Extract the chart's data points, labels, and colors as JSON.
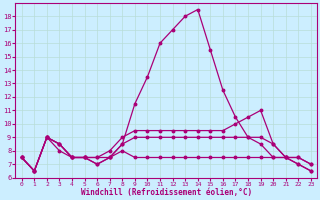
{
  "xlabel": "Windchill (Refroidissement éolien,°C)",
  "background_color": "#cceeff",
  "grid_color": "#b8ddd8",
  "line_color": "#aa0077",
  "x_values": [
    0,
    1,
    2,
    3,
    4,
    5,
    6,
    7,
    8,
    9,
    10,
    11,
    12,
    13,
    14,
    15,
    16,
    17,
    18,
    19,
    20,
    21,
    22,
    23
  ],
  "series1": [
    7.5,
    6.5,
    9.0,
    8.0,
    7.5,
    7.5,
    7.0,
    7.5,
    8.5,
    11.5,
    13.5,
    16.0,
    17.0,
    18.0,
    18.5,
    15.5,
    12.5,
    10.5,
    9.0,
    8.5,
    7.5,
    7.5,
    7.0,
    6.5
  ],
  "series2": [
    7.5,
    6.5,
    9.0,
    8.5,
    7.5,
    7.5,
    7.5,
    8.0,
    9.0,
    9.5,
    9.5,
    9.5,
    9.5,
    9.5,
    9.5,
    9.5,
    9.5,
    10.0,
    10.5,
    11.0,
    8.5,
    7.5,
    7.5,
    7.0
  ],
  "series3": [
    7.5,
    6.5,
    9.0,
    8.5,
    7.5,
    7.5,
    7.5,
    7.5,
    8.5,
    9.0,
    9.0,
    9.0,
    9.0,
    9.0,
    9.0,
    9.0,
    9.0,
    9.0,
    9.0,
    9.0,
    8.5,
    7.5,
    7.5,
    7.0
  ],
  "series4": [
    7.5,
    6.5,
    9.0,
    8.5,
    7.5,
    7.5,
    7.0,
    7.5,
    8.0,
    7.5,
    7.5,
    7.5,
    7.5,
    7.5,
    7.5,
    7.5,
    7.5,
    7.5,
    7.5,
    7.5,
    7.5,
    7.5,
    7.0,
    6.5
  ],
  "ylim": [
    6,
    19
  ],
  "xlim": [
    -0.5,
    23.5
  ],
  "yticks": [
    6,
    7,
    8,
    9,
    10,
    11,
    12,
    13,
    14,
    15,
    16,
    17,
    18
  ],
  "xticks": [
    0,
    1,
    2,
    3,
    4,
    5,
    6,
    7,
    8,
    9,
    10,
    11,
    12,
    13,
    14,
    15,
    16,
    17,
    18,
    19,
    20,
    21,
    22,
    23
  ]
}
